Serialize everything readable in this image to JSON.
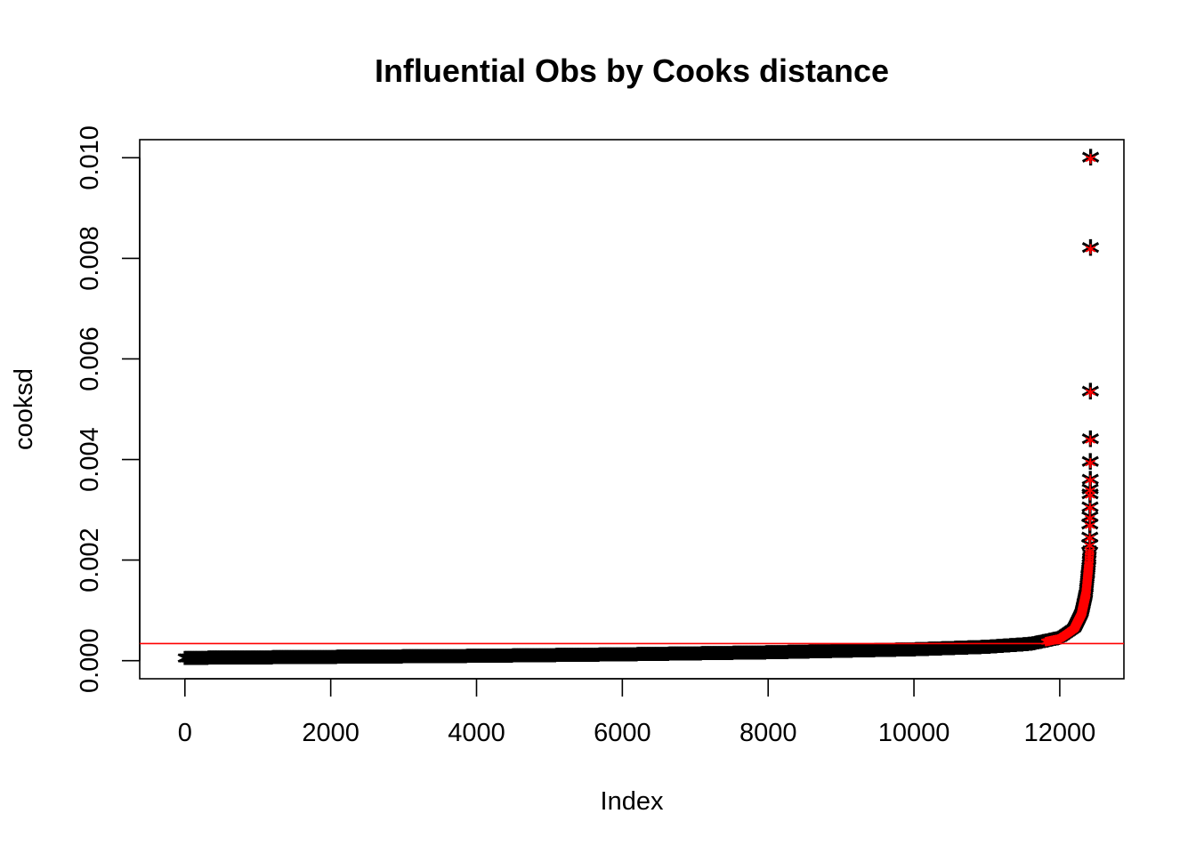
{
  "chart_data": {
    "type": "scatter",
    "title": "Influential Obs by Cooks distance",
    "xlabel": "Index",
    "ylabel": "cooksd",
    "xlim": [
      -620,
      12880
    ],
    "ylim": [
      -0.00036,
      0.01036
    ],
    "x_ticks": [
      0,
      2000,
      4000,
      6000,
      8000,
      10000,
      12000
    ],
    "x_tick_labels": [
      "0",
      "2000",
      "4000",
      "6000",
      "8000",
      "10000",
      "12000"
    ],
    "y_ticks": [
      0,
      0.002,
      0.004,
      0.006,
      0.008,
      0.01
    ],
    "y_tick_labels": [
      "0.000",
      "0.002",
      "0.004",
      "0.006",
      "0.008",
      "0.010"
    ],
    "grid": false,
    "n_observations": 12420,
    "threshold": 0.00034,
    "threshold_color": "#ff0000",
    "point_symbol": "*",
    "point_color": "#000000",
    "highlight_color": "#ff0000",
    "curve_profile": [
      [
        0,
        0.0
      ],
      [
        2000,
        2e-05
      ],
      [
        4000,
        4e-05
      ],
      [
        6000,
        7e-05
      ],
      [
        8000,
        0.00011
      ],
      [
        10000,
        0.00017
      ],
      [
        11000,
        0.00022
      ],
      [
        11600,
        0.00028
      ],
      [
        12000,
        0.0004
      ],
      [
        12200,
        0.0006
      ],
      [
        12300,
        0.0009
      ],
      [
        12360,
        0.0013
      ],
      [
        12400,
        0.0019
      ],
      [
        12410,
        0.00215
      ]
    ],
    "top_outliers": [
      {
        "x": 12411,
        "y": 0.00225
      },
      {
        "x": 12412,
        "y": 0.0024
      },
      {
        "x": 12413,
        "y": 0.00265
      },
      {
        "x": 12414,
        "y": 0.0028
      },
      {
        "x": 12415,
        "y": 0.003
      },
      {
        "x": 12416,
        "y": 0.00325
      },
      {
        "x": 12417,
        "y": 0.00335
      },
      {
        "x": 12418,
        "y": 0.00355
      },
      {
        "x": 12419,
        "y": 0.0039
      },
      {
        "x": 12420,
        "y": 0.00435
      },
      {
        "x": 12421,
        "y": 0.0053
      },
      {
        "x": 12422,
        "y": 0.00815
      },
      {
        "x": 12423,
        "y": 0.00995
      }
    ]
  }
}
